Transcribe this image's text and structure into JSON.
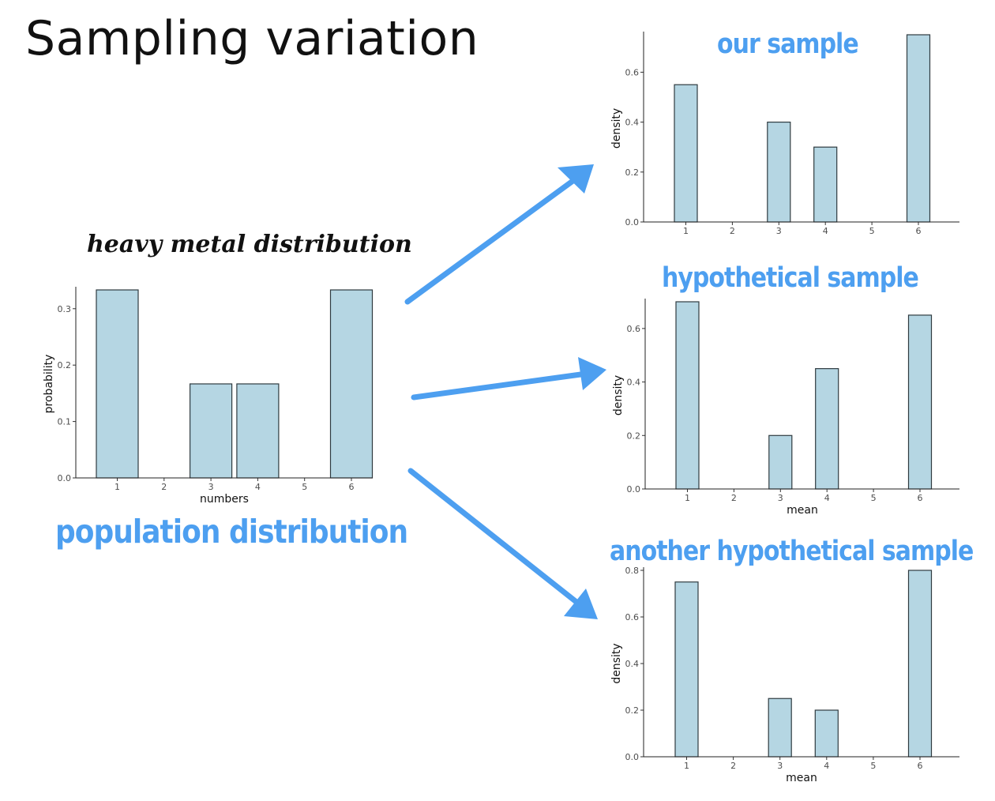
{
  "title": "Sampling variation",
  "heavy_metal_label": "heavy metal distribution",
  "population_label": "population distribution",
  "colors": {
    "bar_fill": "#b5d6e3",
    "bar_stroke": "#2f3b40",
    "annotation_blue": "#4d9ff0",
    "arrow_blue": "#4d9ff0"
  },
  "chart_data": [
    {
      "type": "bar",
      "annotation": "heavy metal distribution / population distribution",
      "categories": [
        "1",
        "2",
        "3",
        "4",
        "5",
        "6"
      ],
      "values": [
        0.3333,
        0,
        0.1667,
        0.1667,
        0,
        0.3333
      ],
      "xlabel": "numbers",
      "ylabel": "probability",
      "ylim": [
        0,
        0.3333
      ],
      "yticks": [
        "0.0",
        "0.1",
        "0.2",
        "0.3"
      ]
    },
    {
      "type": "bar",
      "title": "our sample",
      "categories": [
        "1",
        "2",
        "3",
        "4",
        "5",
        "6"
      ],
      "values": [
        0.55,
        0,
        0.4,
        0.3,
        0,
        0.75
      ],
      "xlabel": "",
      "ylabel": "density",
      "ylim": [
        0,
        0.75
      ],
      "yticks": [
        "0.0",
        "0.2",
        "0.4",
        "0.6"
      ]
    },
    {
      "type": "bar",
      "title": "hypothetical sample",
      "categories": [
        "1",
        "2",
        "3",
        "4",
        "5",
        "6"
      ],
      "values": [
        0.7,
        0,
        0.2,
        0.45,
        0,
        0.65
      ],
      "xlabel": "mean",
      "ylabel": "density",
      "ylim": [
        0,
        0.7
      ],
      "yticks": [
        "0.0",
        "0.2",
        "0.4",
        "0.6"
      ]
    },
    {
      "type": "bar",
      "title": "another hypothetical sample",
      "categories": [
        "1",
        "2",
        "3",
        "4",
        "5",
        "6"
      ],
      "values": [
        0.75,
        0,
        0.25,
        0.2,
        0,
        0.8
      ],
      "xlabel": "mean",
      "ylabel": "density",
      "ylim": [
        0,
        0.8
      ],
      "yticks": [
        "0.0",
        "0.2",
        "0.4",
        "0.6",
        "0.8"
      ]
    }
  ]
}
